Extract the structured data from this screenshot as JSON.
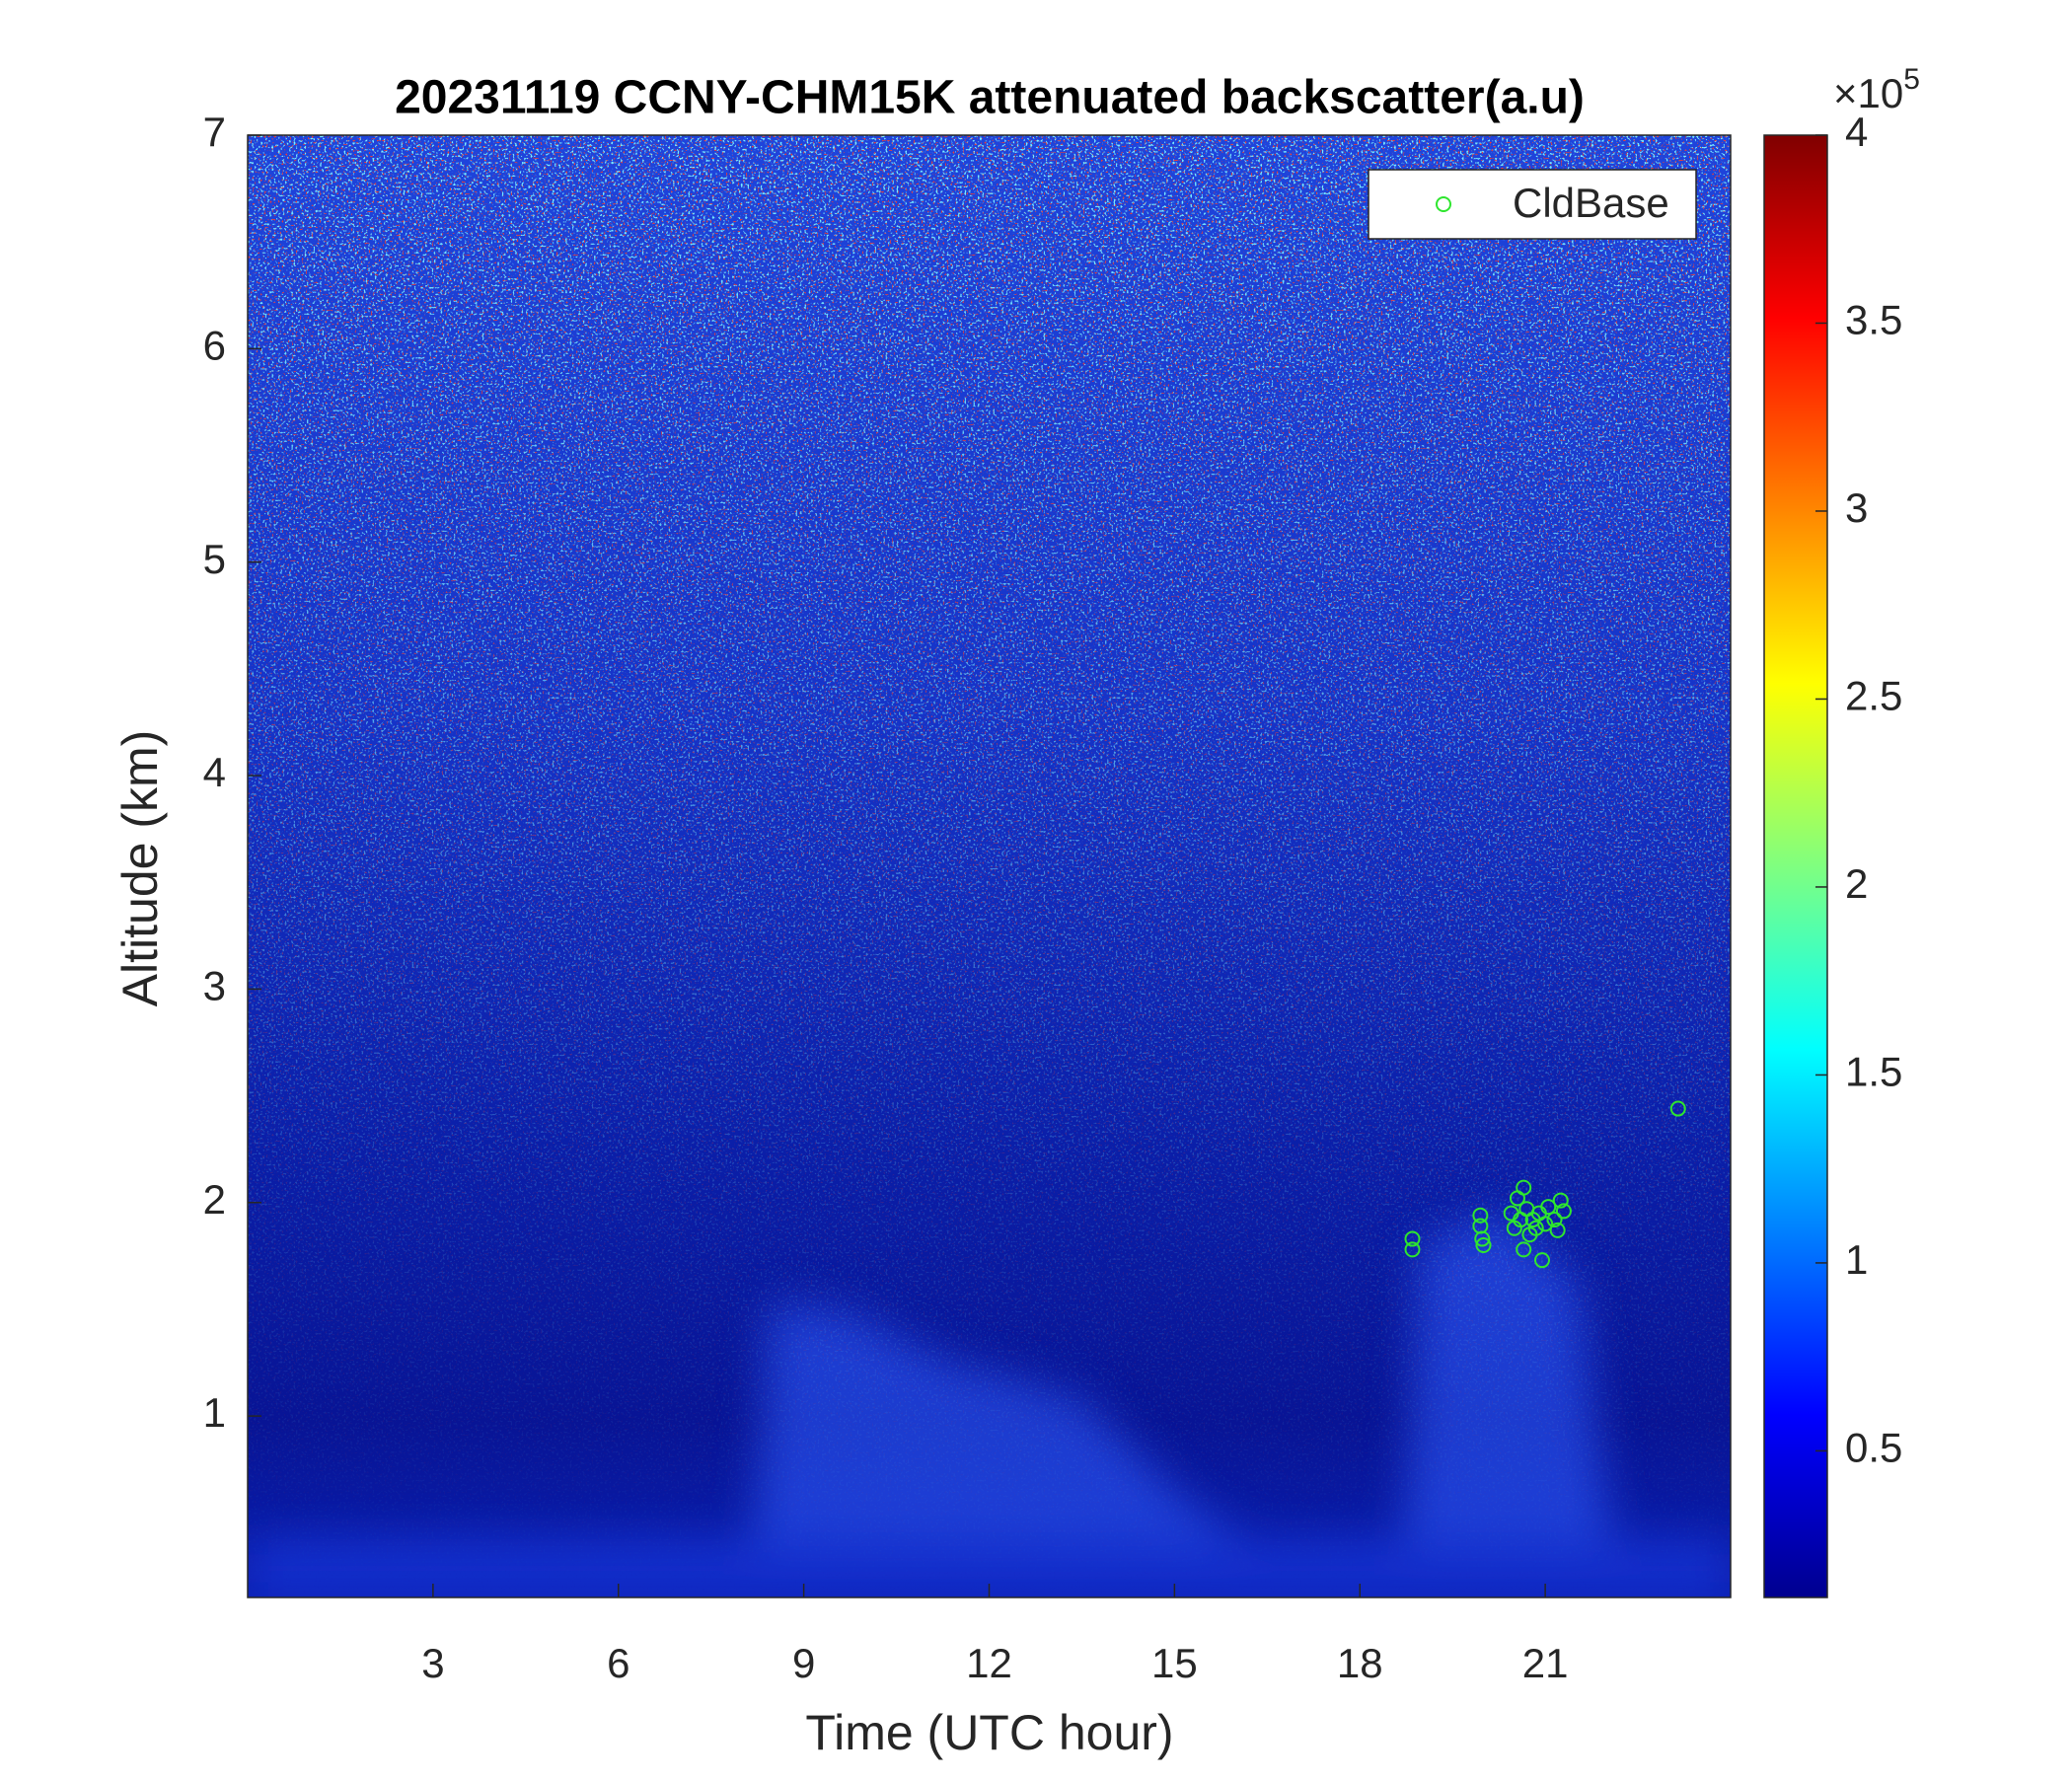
{
  "chart_data": {
    "type": "scatter",
    "title": "20231119 CCNY-CHM15K attenuated backscatter(a.u)",
    "x_label": "Time (UTC hour)",
    "y_label": "Altitude (km)",
    "xlim": [
      0,
      24
    ],
    "ylim": [
      0.15,
      7
    ],
    "xticks": [
      3,
      6,
      9,
      12,
      15,
      18,
      21
    ],
    "yticks": [
      1,
      2,
      3,
      4,
      5,
      6,
      7
    ],
    "grid": false,
    "legend": "northeast",
    "series": [
      {
        "name": "CldBase",
        "color": "#2ee62e",
        "x": [
          18.85,
          18.85,
          19.95,
          19.95,
          19.98,
          20.0,
          20.45,
          20.5,
          20.55,
          20.6,
          20.65,
          20.65,
          20.7,
          20.75,
          20.8,
          20.85,
          20.9,
          20.95,
          21.0,
          21.05,
          21.15,
          21.2,
          21.25,
          21.3,
          23.15
        ],
        "values": [
          1.83,
          1.78,
          1.94,
          1.89,
          1.83,
          1.8,
          1.95,
          1.88,
          2.02,
          1.92,
          2.07,
          1.78,
          1.97,
          1.85,
          1.92,
          1.88,
          1.95,
          1.73,
          1.9,
          1.98,
          1.92,
          1.87,
          2.01,
          1.96,
          2.44
        ]
      }
    ],
    "colorbar": {
      "clim": [
        0.11,
        4
      ],
      "ticks": [
        0.5,
        1,
        1.5,
        2,
        2.5,
        3,
        3.5,
        4
      ],
      "multiplier": {
        "base": "×10",
        "exponent": "5"
      }
    }
  }
}
